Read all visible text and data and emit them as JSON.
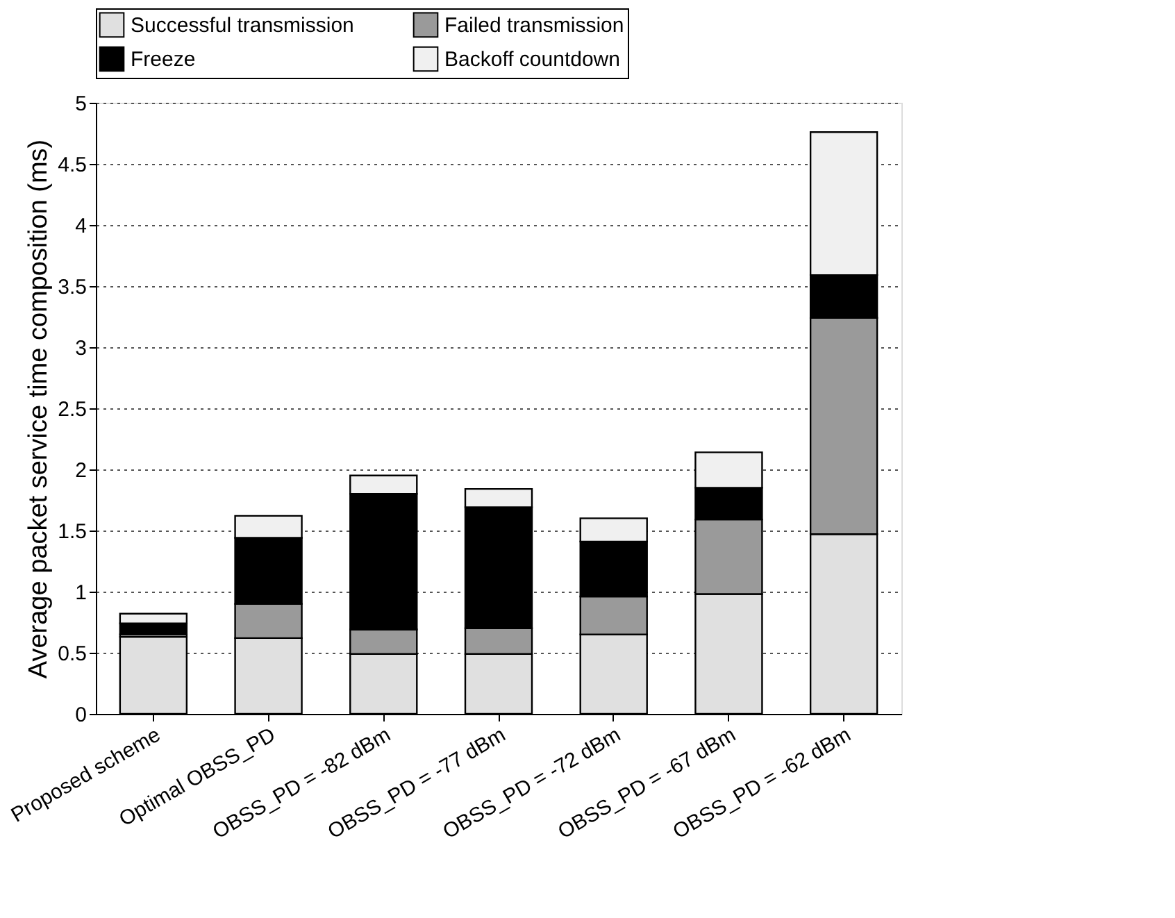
{
  "chart_data": {
    "type": "bar",
    "stacked": true,
    "ylabel": "Average packet service time composition (ms)",
    "categories": [
      "Proposed scheme",
      "Optimal OBSS_PD",
      "OBSS_PD = -82 dBm",
      "OBSS_PD = -77 dBm",
      "OBSS_PD = -72 dBm",
      "OBSS_PD = -67 dBm",
      "OBSS_PD = -62 dBm"
    ],
    "series": [
      {
        "name": "Successful transmission",
        "color": "#e0e0e0",
        "values": [
          0.63,
          0.62,
          0.49,
          0.49,
          0.65,
          0.98,
          1.47
        ]
      },
      {
        "name": "Failed transmission",
        "color": "#9a9a9a",
        "values": [
          0.02,
          0.28,
          0.2,
          0.21,
          0.31,
          0.61,
          1.77
        ]
      },
      {
        "name": "Freeze",
        "color": "#000000",
        "values": [
          0.09,
          0.54,
          1.11,
          0.99,
          0.45,
          0.26,
          0.35
        ]
      },
      {
        "name": "Backoff countdown",
        "color": "#f0f0f0",
        "values": [
          0.08,
          0.18,
          0.15,
          0.15,
          0.19,
          0.29,
          1.17
        ]
      }
    ],
    "ylim": [
      0,
      5
    ],
    "yticks": [
      0,
      0.5,
      1,
      1.5,
      2,
      2.5,
      3,
      3.5,
      4,
      4.5,
      5
    ],
    "grid": "y",
    "legend": "top"
  }
}
